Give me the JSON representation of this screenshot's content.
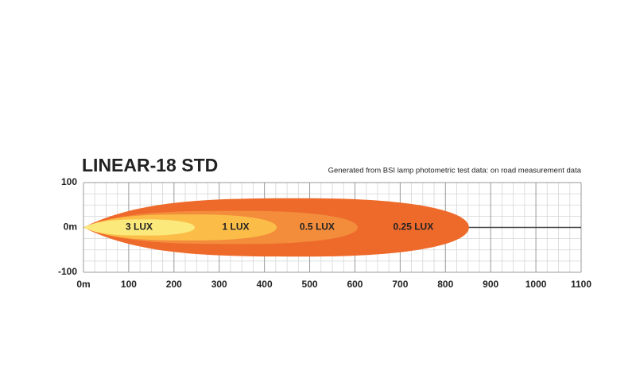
{
  "chart_data": {
    "type": "isolux",
    "title": "LINEAR-18 STD",
    "subtitle": "Generated from BSI lamp photometric test data: on road measurement data",
    "xlim": [
      0,
      1100
    ],
    "xticks": [
      {
        "value": 0,
        "label": "0m"
      },
      100,
      200,
      300,
      400,
      500,
      600,
      700,
      800,
      900,
      1000,
      1100
    ],
    "ylim": [
      -100,
      100
    ],
    "yticks": [
      -100,
      {
        "value": 0,
        "label": "0m"
      },
      100
    ],
    "grid": true,
    "zones": [
      {
        "name": "0.25 LUX",
        "reach": 852,
        "half_width": 65,
        "color": "#ee6a2b"
      },
      {
        "name": "0.5 LUX",
        "reach": 606,
        "half_width": 37,
        "color": "#f38d3c"
      },
      {
        "name": "1 LUX",
        "reach": 427,
        "half_width": 29,
        "color": "#fbbd48"
      },
      {
        "name": "3 LUX",
        "reach": 246,
        "half_width": 18,
        "color": "#fbe97c"
      }
    ]
  }
}
